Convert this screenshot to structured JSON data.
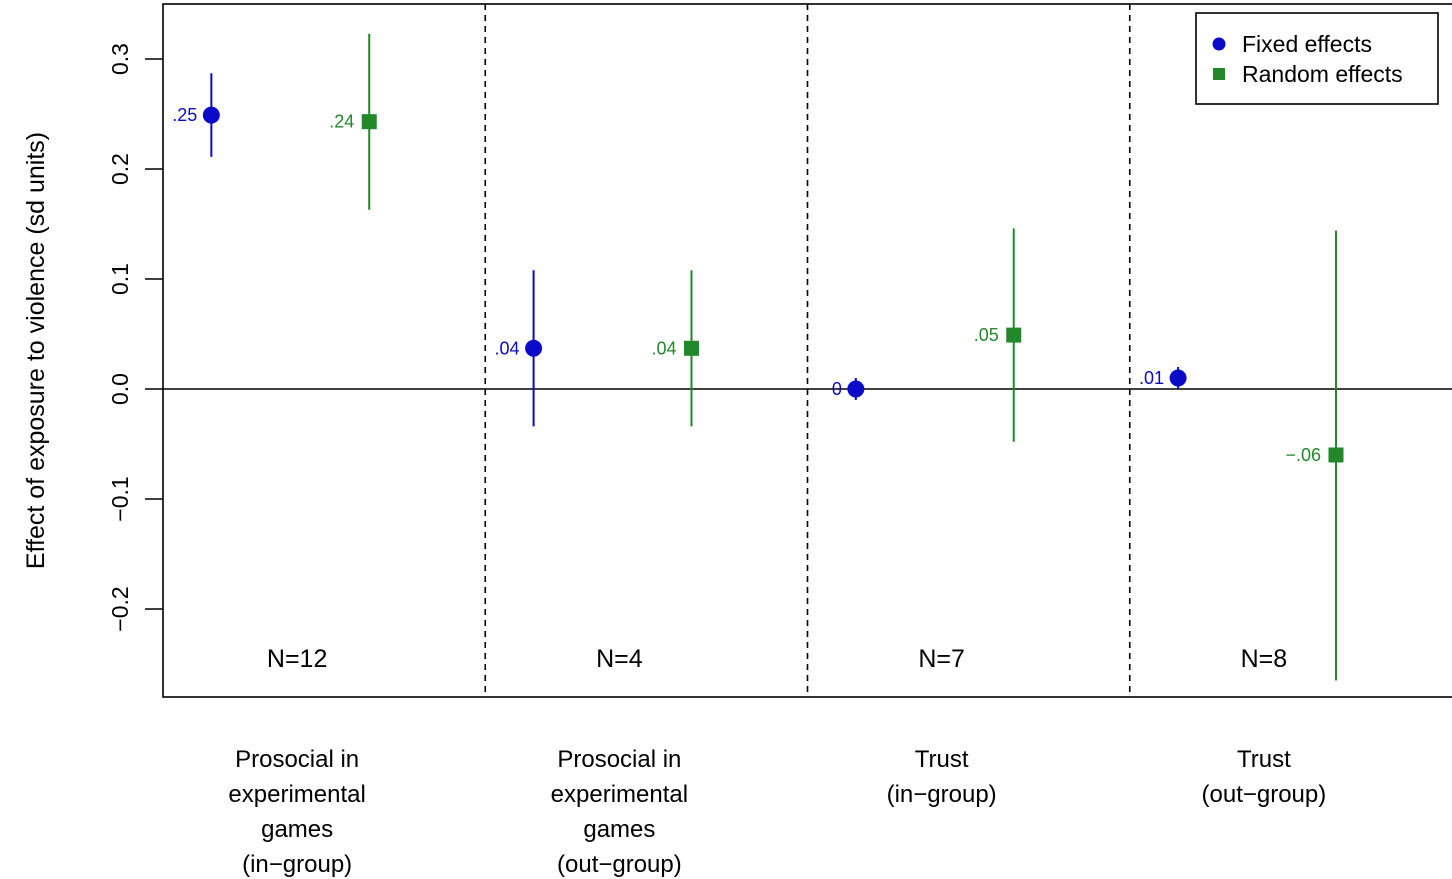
{
  "chart_data": {
    "type": "scatter",
    "ylabel": "Effect of exposure to violence (sd units)",
    "ylim": [
      -0.28,
      0.35
    ],
    "y_ticks": [
      {
        "value": -0.2,
        "label": "−0.2"
      },
      {
        "value": -0.1,
        "label": "−0.1"
      },
      {
        "value": 0.0,
        "label": "0.0"
      },
      {
        "value": 0.1,
        "label": "0.1"
      },
      {
        "value": 0.2,
        "label": "0.2"
      },
      {
        "value": 0.3,
        "label": "0.3"
      }
    ],
    "reference_line": 0,
    "legend": {
      "position": "top-right",
      "entries": [
        {
          "series": "fixed",
          "label": "Fixed effects"
        },
        {
          "series": "random",
          "label": "Random effects"
        }
      ]
    },
    "colors": {
      "fixed": "#0a0ac8",
      "random": "#22882a"
    },
    "groups": [
      {
        "label_lines": [
          "Prosocial in",
          "experimental",
          "games",
          "(in−group)"
        ],
        "n_label": "N=12",
        "fixed": {
          "estimate": 0.249,
          "lower": 0.211,
          "upper": 0.287,
          "label": ".25"
        },
        "random": {
          "estimate": 0.243,
          "lower": 0.163,
          "upper": 0.323,
          "label": ".24"
        }
      },
      {
        "label_lines": [
          "Prosocial in",
          "experimental",
          "games",
          "(out−group)"
        ],
        "n_label": "N=4",
        "fixed": {
          "estimate": 0.037,
          "lower": -0.034,
          "upper": 0.108,
          "label": ".04"
        },
        "random": {
          "estimate": 0.037,
          "lower": -0.034,
          "upper": 0.108,
          "label": ".04"
        }
      },
      {
        "label_lines": [
          "Trust",
          "(in−group)"
        ],
        "n_label": "N=7",
        "fixed": {
          "estimate": 0.0,
          "lower": -0.01,
          "upper": 0.01,
          "label": "0"
        },
        "random": {
          "estimate": 0.049,
          "lower": -0.048,
          "upper": 0.146,
          "label": ".05"
        }
      },
      {
        "label_lines": [
          "Trust",
          "(out−group)"
        ],
        "n_label": "N=8",
        "fixed": {
          "estimate": 0.01,
          "lower": 0.0,
          "upper": 0.02,
          "label": ".01"
        },
        "random": {
          "estimate": -0.06,
          "lower": -0.265,
          "upper": 0.144,
          "label": "−.06"
        }
      }
    ]
  }
}
